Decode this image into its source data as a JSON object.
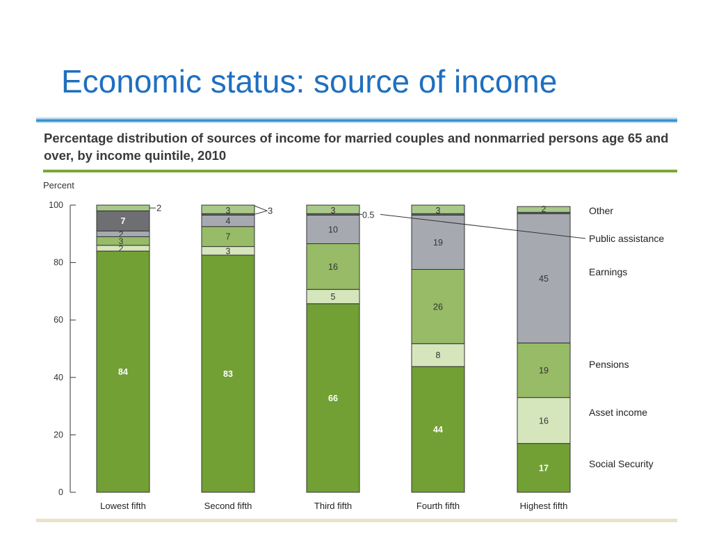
{
  "slide": {
    "title": "Economic status: source of income"
  },
  "chart_data": {
    "type": "bar",
    "stacked": true,
    "title": "Percentage distribution of sources of income for married couples and nonmarried persons age 65 and over, by income quintile, 2010",
    "ylabel": "Percent",
    "ylim": [
      0,
      100
    ],
    "yticks": [
      0,
      20,
      40,
      60,
      80,
      100
    ],
    "categories": [
      "Lowest fifth",
      "Second fifth",
      "Third fifth",
      "Fourth fifth",
      "Highest fifth"
    ],
    "series": [
      {
        "name": "Social Security",
        "values": [
          84,
          83,
          66,
          44,
          17
        ],
        "labels": [
          "84",
          "83",
          "66",
          "44",
          "17"
        ],
        "color": "#72a034",
        "label_color": "#ffffff"
      },
      {
        "name": "Asset income",
        "values": [
          2,
          3,
          5,
          8,
          16
        ],
        "labels": [
          "2",
          "3",
          "5",
          "8",
          "16"
        ],
        "color": "#d6e6bc",
        "label_color": "#333333"
      },
      {
        "name": "Pensions",
        "values": [
          3,
          7,
          16,
          26,
          19
        ],
        "labels": [
          "3",
          "7",
          "16",
          "26",
          "19"
        ],
        "color": "#97bb66",
        "label_color": "#333333"
      },
      {
        "name": "Earnings",
        "values": [
          2,
          4,
          10,
          19,
          45
        ],
        "labels": [
          "2",
          "4",
          "10",
          "19",
          "45"
        ],
        "color": "#a6aab0",
        "label_color": "#333333"
      },
      {
        "name": "Public assistance",
        "values": [
          7,
          0.5,
          0.5,
          0.5,
          0.5
        ],
        "labels": [
          "7",
          "",
          "0.5",
          "",
          ""
        ],
        "color": "#6e6f72",
        "label_color": "#ffffff"
      },
      {
        "name": "Other",
        "values": [
          2,
          3,
          3,
          3,
          2
        ],
        "labels": [
          "2",
          "3",
          "3",
          "3",
          "2"
        ],
        "color": "#a9c98a",
        "label_color": "#333333"
      }
    ],
    "legend_position": "right",
    "grid": false
  }
}
